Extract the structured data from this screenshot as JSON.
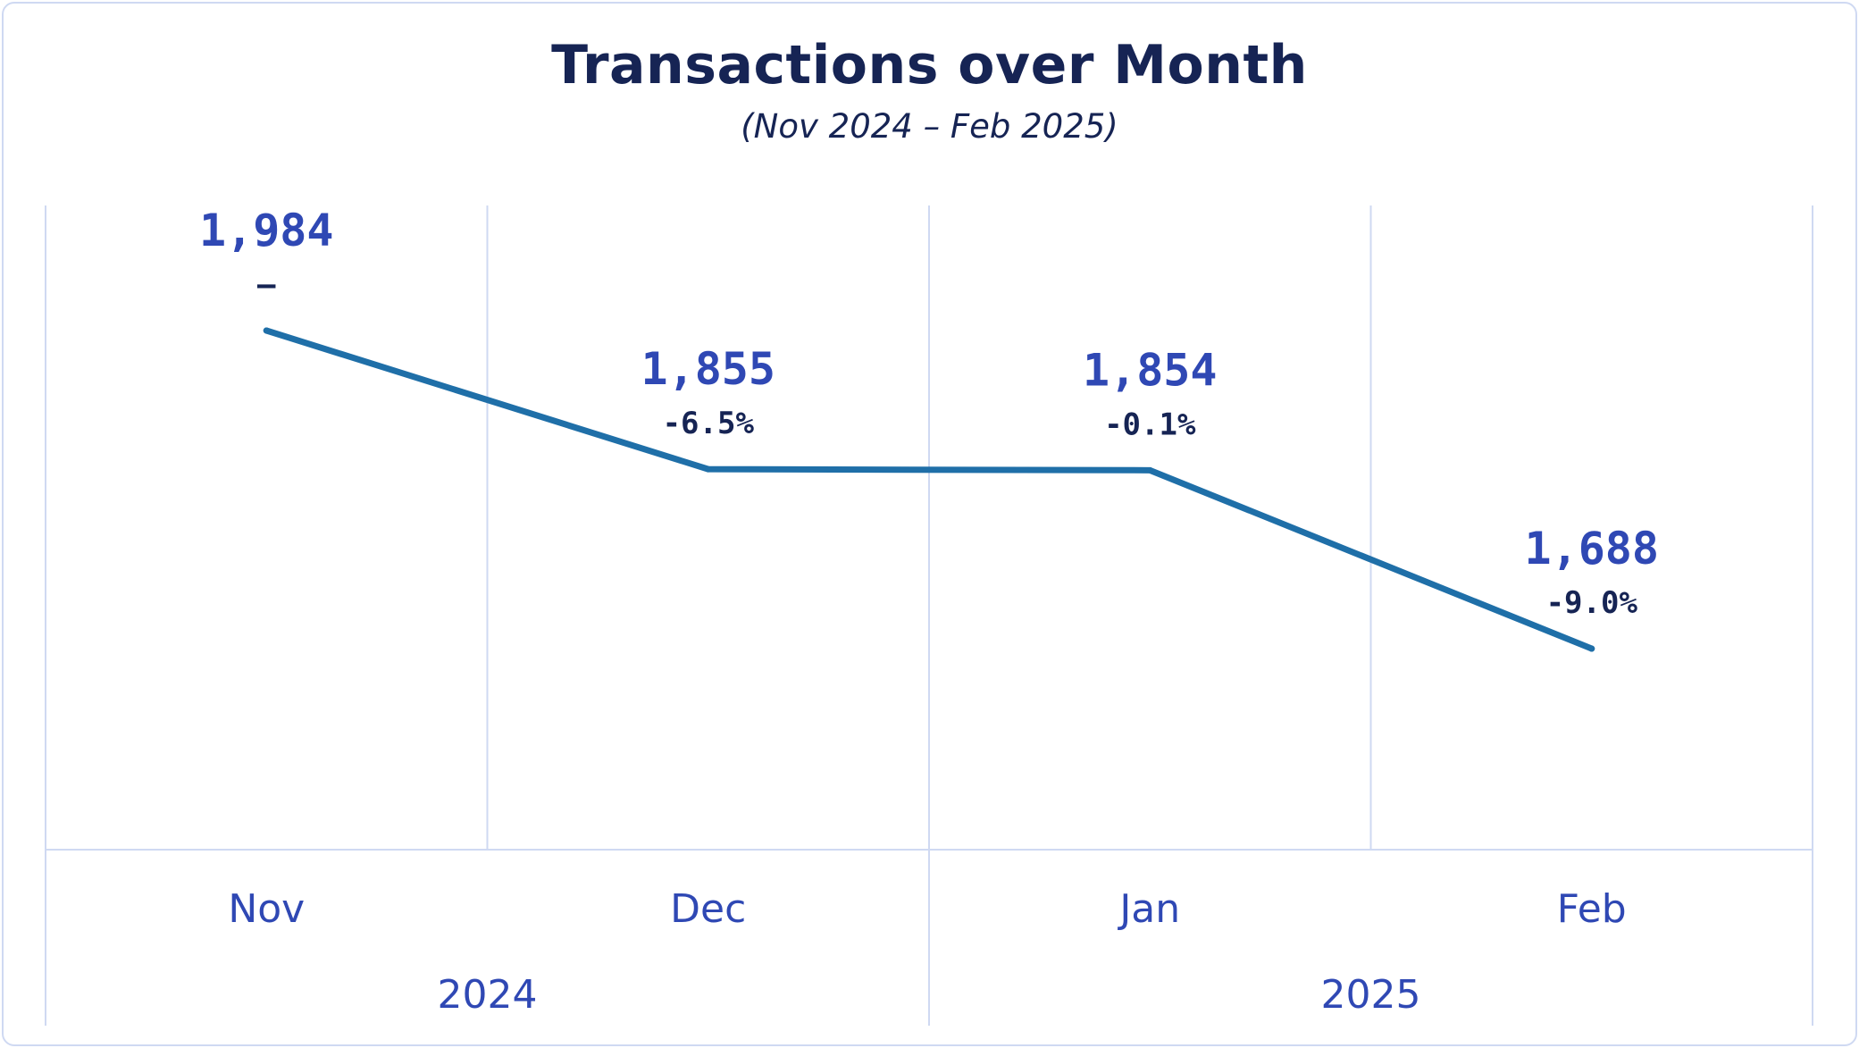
{
  "chart_data": {
    "type": "line",
    "title": "Transactions over Month",
    "subtitle": "(Nov 2024 – Feb 2025)",
    "categories": [
      "Nov",
      "Dec",
      "Jan",
      "Feb"
    ],
    "years": [
      {
        "label": "2024",
        "months": [
          "Nov",
          "Dec"
        ]
      },
      {
        "label": "2025",
        "months": [
          "Jan",
          "Feb"
        ]
      }
    ],
    "series": [
      {
        "values": [
          1984,
          1855,
          1854,
          1688
        ],
        "value_labels": [
          "1,984",
          "1,855",
          "1,854",
          "1,688"
        ],
        "change_labels": [
          "–",
          "-6.5%",
          "-0.1%",
          "-9.0%"
        ]
      }
    ],
    "ylim": [
      1200,
      2100
    ],
    "grid": true,
    "legend": "none",
    "colors": {
      "line": "#1f6fa8",
      "value_text": "#2f48b4",
      "change_text": "#162454",
      "grid": "#cfd9f2",
      "title_text": "#162454"
    }
  }
}
